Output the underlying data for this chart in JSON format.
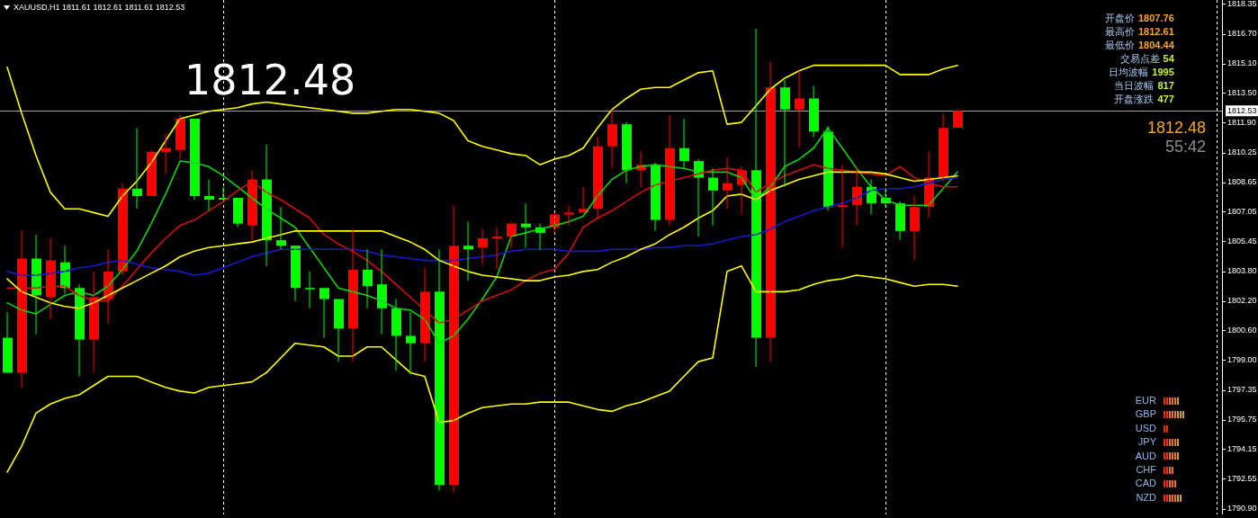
{
  "chart_data": {
    "type": "candlestick",
    "title": "XAUUSD,H1  1811.61 1812.61 1811.61 1812.53",
    "categories": [
      null,
      null,
      null,
      null,
      null,
      null,
      null,
      null,
      null,
      null,
      null,
      null,
      null,
      null,
      null,
      null,
      null,
      null,
      null,
      null,
      null,
      null,
      null,
      null,
      null,
      null,
      null,
      null,
      null,
      null,
      null,
      null,
      null,
      null,
      null,
      null,
      null,
      null,
      null,
      null,
      null,
      null,
      null,
      null,
      null,
      null,
      null,
      null,
      null,
      null,
      null,
      null,
      null,
      null,
      null,
      null,
      null,
      null,
      null,
      null,
      null,
      null,
      null,
      null,
      null,
      null,
      null
    ],
    "ohlc": [
      [
        1800.2,
        1801.6,
        1798.3,
        1798.3
      ],
      [
        1798.3,
        1806.0,
        1797.5,
        1804.5
      ],
      [
        1804.5,
        1805.8,
        1800.4,
        1802.5
      ],
      [
        1802.4,
        1805.6,
        1801.2,
        1804.4
      ],
      [
        1804.3,
        1805.2,
        1802.6,
        1802.9
      ],
      [
        1802.9,
        1803.1,
        1798.1,
        1800.1
      ],
      [
        1800.1,
        1803.8,
        1798.3,
        1802.4
      ],
      [
        1802.3,
        1805.0,
        1801.0,
        1803.8
      ],
      [
        1803.8,
        1808.6,
        1803.6,
        1808.3
      ],
      [
        1808.3,
        1811.6,
        1807.2,
        1807.9
      ],
      [
        1807.9,
        1810.4,
        1807.9,
        1810.3
      ],
      [
        1810.3,
        1811.3,
        1809.1,
        1810.5
      ],
      [
        1810.4,
        1812.3,
        1809.9,
        1812.1
      ],
      [
        1812.1,
        1812.1,
        1807.7,
        1807.9
      ],
      [
        1807.9,
        1808.8,
        1807.1,
        1807.7
      ],
      [
        1807.8,
        1808.4,
        1807.7,
        1807.7
      ],
      [
        1807.8,
        1807.8,
        1806.2,
        1806.4
      ],
      [
        1806.3,
        1809.3,
        1805.5,
        1808.8
      ],
      [
        1808.8,
        1810.7,
        1804.1,
        1805.5
      ],
      [
        1805.5,
        1807.3,
        1805.0,
        1805.2
      ],
      [
        1805.2,
        1805.2,
        1802.2,
        1802.9
      ],
      [
        1802.9,
        1803.8,
        1801.8,
        1802.9
      ],
      [
        1802.9,
        1802.9,
        1800.2,
        1802.3
      ],
      [
        1802.3,
        1802.3,
        1798.9,
        1800.7
      ],
      [
        1800.7,
        1806.1,
        1798.9,
        1803.9
      ],
      [
        1803.9,
        1805.0,
        1801.8,
        1803.0
      ],
      [
        1803.1,
        1805.0,
        1800.4,
        1801.8
      ],
      [
        1801.8,
        1802.3,
        1798.4,
        1800.3
      ],
      [
        1800.3,
        1801.6,
        1798.2,
        1799.9
      ],
      [
        1799.9,
        1804.0,
        1798.9,
        1802.7
      ],
      [
        1802.7,
        1805.0,
        1791.9,
        1792.2
      ],
      [
        1792.2,
        1807.4,
        1791.8,
        1805.2
      ],
      [
        1805.2,
        1806.5,
        1803.3,
        1805.0
      ],
      [
        1805.1,
        1806.1,
        1804.2,
        1805.6
      ],
      [
        1805.6,
        1806.2,
        1803.9,
        1805.7
      ],
      [
        1805.7,
        1806.5,
        1805.1,
        1806.4
      ],
      [
        1806.4,
        1807.5,
        1805.1,
        1806.2
      ],
      [
        1806.2,
        1806.4,
        1805.0,
        1805.9
      ],
      [
        1806.2,
        1807.0,
        1805.9,
        1806.9
      ],
      [
        1806.9,
        1807.4,
        1806.3,
        1807.0
      ],
      [
        1807.0,
        1808.4,
        1807.0,
        1807.2
      ],
      [
        1807.2,
        1811.1,
        1806.7,
        1810.6
      ],
      [
        1810.6,
        1812.6,
        1809.4,
        1811.8
      ],
      [
        1811.8,
        1811.9,
        1808.6,
        1809.3
      ],
      [
        1809.3,
        1810.3,
        1808.4,
        1809.6
      ],
      [
        1809.6,
        1809.7,
        1806.0,
        1806.6
      ],
      [
        1806.6,
        1812.3,
        1806.3,
        1810.5
      ],
      [
        1810.5,
        1812.1,
        1809.4,
        1809.8
      ],
      [
        1809.8,
        1809.9,
        1805.7,
        1808.9
      ],
      [
        1808.9,
        1809.4,
        1806.3,
        1808.2
      ],
      [
        1808.2,
        1810.0,
        1807.2,
        1808.6
      ],
      [
        1808.5,
        1809.5,
        1806.9,
        1809.3
      ],
      [
        1809.3,
        1817.0,
        1798.6,
        1800.2
      ],
      [
        1800.2,
        1815.2,
        1798.9,
        1813.8
      ],
      [
        1813.8,
        1814.2,
        1808.4,
        1812.6
      ],
      [
        1812.6,
        1814.7,
        1810.5,
        1813.2
      ],
      [
        1813.2,
        1813.9,
        1811.1,
        1811.4
      ],
      [
        1811.4,
        1811.7,
        1807.1,
        1807.3
      ],
      [
        1807.3,
        1809.6,
        1805.1,
        1807.4
      ],
      [
        1807.4,
        1809.5,
        1806.3,
        1808.4
      ],
      [
        1808.4,
        1808.8,
        1806.9,
        1807.5
      ],
      [
        1807.8,
        1808.3,
        1807.3,
        1807.5
      ],
      [
        1807.5,
        1807.6,
        1805.5,
        1806.0
      ],
      [
        1806.0,
        1807.9,
        1804.4,
        1807.3
      ],
      [
        1807.3,
        1810.3,
        1806.7,
        1808.9
      ],
      [
        1808.9,
        1812.4,
        1808.7,
        1811.6
      ],
      [
        1811.61,
        1812.61,
        1811.61,
        1812.53
      ]
    ],
    "colors": [
      "#00ff00",
      "#ff0000",
      "#00ff00",
      "#ff0000",
      "#00ff00",
      "#00ff00",
      "#ff0000",
      "#ff0000",
      "#ff0000",
      "#00ff00",
      "#ff0000",
      "#ff0000",
      "#ff0000",
      "#00ff00",
      "#00ff00",
      "#00ff00",
      "#00ff00",
      "#ff0000",
      "#00ff00",
      "#00ff00",
      "#00ff00",
      "#00ff00",
      "#00ff00",
      "#00ff00",
      "#ff0000",
      "#00ff00",
      "#00ff00",
      "#00ff00",
      "#00ff00",
      "#ff0000",
      "#00ff00",
      "#ff0000",
      "#00ff00",
      "#ff0000",
      "#ff0000",
      "#ff0000",
      "#00ff00",
      "#00ff00",
      "#ff0000",
      "#ff0000",
      "#ff0000",
      "#ff0000",
      "#ff0000",
      "#00ff00",
      "#ff0000",
      "#00ff00",
      "#ff0000",
      "#00ff00",
      "#00ff00",
      "#00ff00",
      "#ff0000",
      "#ff0000",
      "#00ff00",
      "#ff0000",
      "#00ff00",
      "#ff0000",
      "#00ff00",
      "#00ff00",
      "#ff0000",
      "#ff0000",
      "#00ff00",
      "#00ff00",
      "#00ff00",
      "#ff0000",
      "#ff0000",
      "#ff0000",
      "#ff0000"
    ],
    "series": [
      {
        "type": "line",
        "color": "#ffff00",
        "values": [
          1814.9,
          1812.4,
          1810.1,
          1808.1,
          1807.2,
          1807.2,
          1807.0,
          1806.8,
          1807.9,
          1808.7,
          1809.7,
          1810.9,
          1812.1,
          1812.3,
          1812.5,
          1812.6,
          1812.7,
          1812.9,
          1813.0,
          1812.9,
          1812.8,
          1812.7,
          1812.6,
          1812.5,
          1812.4,
          1812.4,
          1812.5,
          1812.6,
          1812.6,
          1812.5,
          1812.4,
          1812.0,
          1810.9,
          1810.6,
          1810.4,
          1810.2,
          1810.1,
          1809.6,
          1809.9,
          1810.1,
          1810.5,
          1811.6,
          1812.6,
          1813.2,
          1813.7,
          1813.8,
          1813.8,
          1814.2,
          1814.6,
          1814.7,
          1811.8,
          1811.9,
          1812.8,
          1813.7,
          1814.3,
          1814.7,
          1815.0,
          1815.0,
          1815.0,
          1815.0,
          1815.0,
          1815.0,
          1814.5,
          1814.5,
          1814.5,
          1814.8,
          1815.0
        ]
      },
      {
        "type": "line",
        "color": "#ffff00",
        "values": [
          1803.4,
          1802.7,
          1802.4,
          1802.1,
          1801.9,
          1801.8,
          1802.1,
          1802.5,
          1802.9,
          1803.3,
          1803.7,
          1804.1,
          1804.6,
          1804.9,
          1805.1,
          1805.2,
          1805.3,
          1805.4,
          1805.6,
          1805.8,
          1806.0,
          1806.0,
          1806.0,
          1806.0,
          1806.0,
          1806.0,
          1806.0,
          1805.7,
          1805.4,
          1805.0,
          1804.4,
          1804.1,
          1803.8,
          1803.6,
          1803.5,
          1803.4,
          1803.3,
          1803.3,
          1803.5,
          1803.6,
          1803.8,
          1803.9,
          1804.3,
          1804.6,
          1805.0,
          1805.3,
          1805.8,
          1806.2,
          1806.7,
          1807.1,
          1807.9,
          1808.0,
          1807.7,
          1808.2,
          1808.5,
          1808.8,
          1809.0,
          1809.2,
          1809.2,
          1809.2,
          1809.2,
          1809.1,
          1808.9,
          1808.7,
          1808.8,
          1808.9,
          1809.0
        ]
      },
      {
        "type": "line",
        "color": "#ffff00",
        "values": [
          1792.9,
          1794.3,
          1796.1,
          1796.6,
          1796.9,
          1797.1,
          1797.6,
          1798.1,
          1798.1,
          1798.1,
          1797.8,
          1797.5,
          1797.3,
          1797.2,
          1797.5,
          1797.6,
          1797.7,
          1797.8,
          1798.3,
          1799.1,
          1799.9,
          1799.8,
          1799.7,
          1799.2,
          1799.2,
          1799.7,
          1799.7,
          1799.0,
          1798.3,
          1798.1,
          1795.6,
          1795.7,
          1796.1,
          1796.4,
          1796.5,
          1796.6,
          1796.6,
          1796.7,
          1796.7,
          1796.7,
          1796.5,
          1796.3,
          1796.2,
          1796.5,
          1796.7,
          1797.0,
          1797.3,
          1798.1,
          1798.9,
          1799.1,
          1803.8,
          1804.1,
          1802.7,
          1802.7,
          1802.7,
          1802.8,
          1803.1,
          1803.3,
          1803.4,
          1803.6,
          1803.5,
          1803.4,
          1803.2,
          1803.0,
          1803.1,
          1803.1,
          1803.0
        ]
      },
      {
        "type": "line",
        "color": "#1818d0",
        "values": [
          1803.8,
          1803.6,
          1803.6,
          1803.7,
          1803.8,
          1804.0,
          1804.1,
          1804.3,
          1804.4,
          1804.2,
          1804.0,
          1803.9,
          1803.8,
          1803.6,
          1803.7,
          1804.0,
          1804.3,
          1804.6,
          1804.8,
          1805.0,
          1805.0,
          1805.0,
          1805.0,
          1805.0,
          1805.0,
          1804.9,
          1804.7,
          1804.6,
          1804.5,
          1804.4,
          1804.4,
          1804.4,
          1804.5,
          1804.6,
          1804.7,
          1804.9,
          1805.0,
          1805.0,
          1805.0,
          1804.9,
          1804.9,
          1804.9,
          1805.0,
          1805.0,
          1805.0,
          1805.1,
          1805.1,
          1805.2,
          1805.2,
          1805.3,
          1805.5,
          1805.7,
          1805.8,
          1806.1,
          1806.5,
          1806.8,
          1807.1,
          1807.3,
          1807.5,
          1807.8,
          1808.2,
          1808.3,
          1808.3,
          1808.4,
          1808.6,
          1808.8,
          1808.9
        ]
      },
      {
        "type": "line",
        "color": "#d01010",
        "values": [
          1802.9,
          1802.9,
          1802.9,
          1803.0,
          1803.0,
          1802.5,
          1802.2,
          1802.2,
          1803.0,
          1803.9,
          1804.8,
          1805.6,
          1806.3,
          1806.6,
          1807.1,
          1807.6,
          1808.2,
          1808.7,
          1808.1,
          1807.7,
          1807.2,
          1806.7,
          1805.8,
          1805.3,
          1804.9,
          1804.4,
          1803.8,
          1803.1,
          1802.4,
          1801.7,
          1801.0,
          1801.2,
          1801.7,
          1802.2,
          1802.5,
          1802.8,
          1803.3,
          1803.7,
          1803.9,
          1804.8,
          1806.2,
          1806.7,
          1807.1,
          1807.6,
          1808.1,
          1808.5,
          1808.7,
          1808.9,
          1809.1,
          1809.3,
          1809.4,
          1809.3,
          1808.1,
          1808.6,
          1809.0,
          1809.3,
          1809.6,
          1809.4,
          1809.3,
          1809.2,
          1809.1,
          1809.0,
          1809.5,
          1808.9,
          1808.6,
          1808.4,
          1808.4
        ]
      },
      {
        "type": "line",
        "color": "#10d010",
        "values": [
          1802.1,
          1801.7,
          1801.5,
          1802.0,
          1802.5,
          1802.7,
          1802.5,
          1803.0,
          1803.9,
          1804.9,
          1806.4,
          1808.0,
          1809.8,
          1809.7,
          1809.5,
          1809.0,
          1808.4,
          1807.8,
          1807.2,
          1806.7,
          1806.2,
          1805.1,
          1804.0,
          1802.9,
          1802.7,
          1802.5,
          1802.2,
          1801.8,
          1801.7,
          1801.2,
          1799.9,
          1800.3,
          1801.2,
          1802.3,
          1803.5,
          1805.7,
          1805.9,
          1806.1,
          1806.3,
          1806.5,
          1806.8,
          1807.9,
          1808.8,
          1809.3,
          1809.5,
          1809.6,
          1809.5,
          1809.4,
          1809.2,
          1809.2,
          1809.2,
          1808.9,
          1807.7,
          1808.4,
          1809.5,
          1809.9,
          1810.5,
          1811.6,
          1810.5,
          1809.4,
          1808.4,
          1807.7,
          1807.4,
          1807.4,
          1807.4,
          1808.3,
          1809.2
        ]
      }
    ],
    "ylim": [
      1790.6,
      1818.55
    ],
    "yticks": [
      1818.35,
      {
        "value": 1816.7,
        "label": "1816.70"
      },
      {
        "value": 1815.1,
        "label": "1815.10"
      },
      {
        "value": 1813.5,
        "label": "1813.50"
      },
      {
        "value": 1811.9,
        "label": "1811.90"
      },
      1810.25,
      1808.65,
      1807.05,
      1805.45,
      {
        "value": 1803.8,
        "label": "1803.80"
      },
      {
        "value": 1802.2,
        "label": "1802.20"
      },
      {
        "value": 1800.6,
        "label": "1800.60"
      },
      {
        "value": 1799,
        "label": "1799.00"
      },
      1797.35,
      1795.75,
      1794.15,
      1792.55,
      {
        "value": 1790.9,
        "label": "1790.90"
      }
    ],
    "tick_labels": "y",
    "grid": "x",
    "ref_lines": [
      {
        "axis": "y",
        "value": 1812.53,
        "label": "1812.53",
        "color": "#a0a0a0",
        "line_style": "solid"
      }
    ],
    "annotations": [
      "1812.48",
      "开盘价 1807.76",
      "最高价 1812.61",
      "最低价 1804.44",
      "交易点差 54",
      "日均波幅 1995",
      "当日波幅 817",
      "开盘涨跌 477",
      "1812.48",
      "55:42",
      "EUR",
      "GBP",
      "USD",
      "JPY",
      "AUD",
      "CHF",
      "CAD",
      "NZD"
    ]
  }
}
